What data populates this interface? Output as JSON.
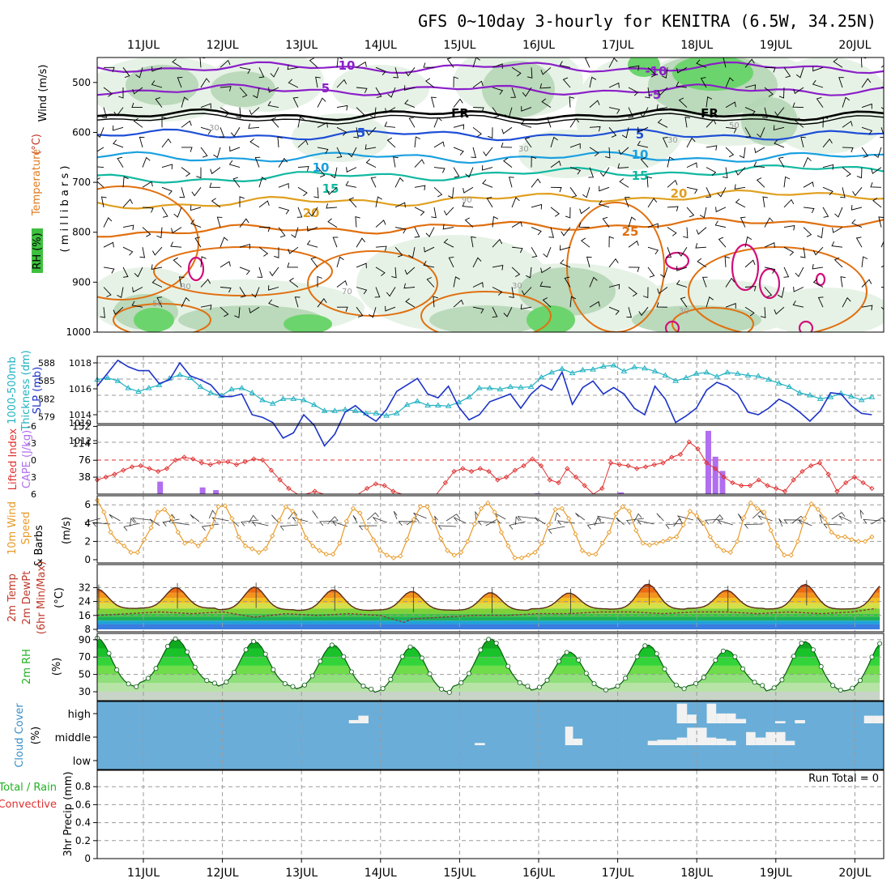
{
  "title": "GFS 0~10day 3-hourly for KENITRA (6.5W, 34.25N)",
  "dates": [
    "11JUL",
    "12JUL",
    "13JUL",
    "14JUL",
    "15JUL",
    "16JUL",
    "17JUL",
    "18JUL",
    "19JUL",
    "20JUL"
  ],
  "colors": {
    "wind_purple": "#8b1fc8",
    "fr_black": "#000000",
    "blue_5": "#1f4fd6",
    "cyan_10": "#1aa0e0",
    "teal_15": "#11b8a0",
    "gold_20": "#e0a020",
    "orange_25": "#e07010",
    "magenta": "#d0107a",
    "rh_light": "#e6f2e6",
    "rh_mid": "#b6d6b6",
    "rh_dark": "#9ab59a",
    "rh_bright": "#6cd46c",
    "slp_blue": "#1c33c8",
    "thick_cyan": "#22b2c2",
    "li_red": "#e03030",
    "cape_purple": "#b06ef0",
    "wind_orange": "#e89a28",
    "cloud_blue": "#6aadd8"
  },
  "panel_labels": {
    "upper": {
      "wind": "Wind (m/s)",
      "temperature": "Temperature",
      "temp_unit": "(°C)",
      "rh": "RH (%)",
      "pressure": "( m i l l i b a r s )"
    },
    "slp": {
      "thickness": "1000-500mb",
      "thickness2": "Thickness (dm)",
      "slp": "SLP (mb)"
    },
    "li": {
      "li": "Lifted Index",
      "cape": "CAPE (J/kg)"
    },
    "wind10": {
      "line1": "10m Wind",
      "line2": "Speed",
      "line3": "& Barbs",
      "unit": "(m/s)"
    },
    "temp2m": {
      "line1": "2m Temp",
      "line2": "2m DewPt",
      "line3": "(6hr Min/Max)",
      "unit": "(°C)"
    },
    "rh2m": {
      "label": "2m RH",
      "unit": "(%)"
    },
    "cloud": {
      "label": "Cloud Cover",
      "unit": "(%)"
    },
    "precip": {
      "line1": "Total / Rain",
      "line2": "Convective",
      "axis": "3hr Precip (mm)",
      "run_total": "Run Total = 0"
    }
  },
  "contour_labels": {
    "wind_10": "10",
    "wind_5": "5",
    "t_m10": "-10",
    "t_m5": "-5",
    "fr": "FR",
    "t_5": "5",
    "t_10": "10",
    "t_15": "15",
    "t_20": "20",
    "t_25": "25",
    "rh_30": "30",
    "rh_50": "50",
    "rh_70": "70",
    "rh_90": "90"
  },
  "chart_data": [
    {
      "type": "heatmap",
      "name": "pressure-time cross section",
      "y_ticks": [
        "500",
        "600",
        "700",
        "800",
        "900",
        "1000"
      ],
      "ylim": [
        1000,
        450
      ],
      "temperature_contours_C": [
        -10,
        -5,
        0,
        5,
        10,
        15,
        20,
        25
      ],
      "rh_levels_percent": [
        30,
        50,
        70,
        90
      ]
    },
    {
      "type": "line",
      "name": "slp-thickness",
      "slp_ticks": [
        "1012",
        "1014",
        "1016",
        "1018"
      ],
      "slp_bottom_tick": "1010",
      "thickness_ticks": [
        "579",
        "582",
        "585",
        "588"
      ],
      "slp_mb": [
        1016.2,
        1017.2,
        1018.2,
        1017.7,
        1017.4,
        1017.4,
        1016.4,
        1016.7,
        1018.0,
        1017.0,
        1016.7,
        1016.3,
        1015.4,
        1015.4,
        1015.6,
        1014.0,
        1013.8,
        1013.4,
        1012.2,
        1012.6,
        1014.0,
        1013.2,
        1011.6,
        1012.5,
        1014.2,
        1014.7,
        1014.0,
        1013.5,
        1014.4,
        1015.8,
        1016.3,
        1016.8,
        1015.6,
        1015.3,
        1016.2,
        1014.6,
        1013.6,
        1014.0,
        1015.0,
        1015.3,
        1015.6,
        1014.5,
        1015.6,
        1016.3,
        1015.9,
        1017.3,
        1014.8,
        1016.1,
        1016.6,
        1015.6,
        1016.1,
        1015.6,
        1014.5,
        1014.0,
        1016.2,
        1015.2,
        1013.4,
        1013.9,
        1014.5,
        1015.9,
        1016.5,
        1016.2,
        1015.6,
        1014.2,
        1014.0,
        1014.5,
        1015.2,
        1014.8,
        1014.2,
        1013.5,
        1014.3,
        1015.7,
        1015.6,
        1014.7,
        1014.1,
        1014.0
      ],
      "thickness_dm": [
        585.2,
        585.5,
        585.0,
        583.8,
        583.2,
        583.8,
        584.3,
        585.4,
        586.0,
        585.5,
        584.0,
        583.0,
        582.5,
        583.6,
        583.8,
        583.0,
        581.8,
        581.2,
        582.0,
        582.0,
        581.8,
        581.0,
        580.0,
        580.0,
        580.2,
        580.0,
        579.6,
        579.6,
        579.2,
        579.6,
        581.0,
        581.6,
        580.9,
        580.9,
        580.8,
        581.4,
        582.3,
        583.8,
        583.8,
        583.6,
        584.0,
        583.9,
        584.0,
        585.6,
        586.4,
        587.0,
        586.3,
        586.8,
        586.9,
        587.4,
        587.6,
        586.6,
        587.3,
        587.1,
        586.6,
        585.9,
        585.0,
        585.5,
        586.2,
        586.4,
        585.7,
        586.4,
        586.2,
        585.9,
        585.8,
        585.2,
        584.6,
        584.0,
        583.0,
        582.6,
        582.0,
        582.3,
        582.9,
        582.4,
        581.8,
        582.3
      ]
    },
    {
      "type": "bar",
      "name": "lifted-index-cape",
      "li_ticks": [
        "-6",
        "-3",
        "0",
        "3",
        "6"
      ],
      "cape_ticks": [
        "38",
        "76",
        "114",
        "152"
      ],
      "lifted_index": [
        3.5,
        3.0,
        2.5,
        1.8,
        1.2,
        1.0,
        1.5,
        2.0,
        1.5,
        0.0,
        -0.5,
        -0.2,
        0.5,
        0.8,
        0.4,
        0.3,
        0.8,
        0.3,
        -0.2,
        0.0,
        1.8,
        3.5,
        5.0,
        7.0,
        6.0,
        5.5,
        6.0,
        6.5,
        7.5,
        8.0,
        7.0,
        5.0,
        4.2,
        4.5,
        5.5,
        6.5,
        7.0,
        7.5,
        8.0,
        8.5,
        4.0,
        2.0,
        1.5,
        2.0,
        1.5,
        2.0,
        3.5,
        3.0,
        1.8,
        1.0,
        -0.2,
        1.0,
        3.5,
        4.0,
        1.5,
        3.0,
        4.5,
        6.5,
        5.0,
        0.5,
        0.8,
        1.0,
        1.5,
        1.2,
        0.8,
        0.5,
        -0.5,
        -1.0,
        -3.2,
        -2.0,
        0.5,
        1.5,
        3.0,
        4.0,
        4.5,
        4.5,
        3.5,
        4.5,
        5.0,
        5.5,
        3.5,
        2.0,
        1.0,
        0.5,
        2.5,
        5.5,
        4.0,
        3.0,
        4.0,
        5.0
      ],
      "cape": [
        {
          "t": 0.8,
          "v": 28
        },
        {
          "t": 1.34,
          "v": 15
        },
        {
          "t": 1.51,
          "v": 9
        },
        {
          "t": 5.6,
          "v": 2
        },
        {
          "t": 6.66,
          "v": 4
        },
        {
          "t": 7.77,
          "v": 142
        },
        {
          "t": 7.86,
          "v": 84
        },
        {
          "t": 7.95,
          "v": 52
        }
      ]
    },
    {
      "type": "line",
      "name": "10m wind speed",
      "y_ticks": [
        "0",
        "2",
        "4",
        "6"
      ],
      "speed_ms": [
        6.5,
        5.2,
        3.0,
        2.0,
        1.5,
        0.8,
        0.8,
        2.2,
        3.5,
        5.2,
        5.5,
        4.6,
        3.0,
        1.8,
        2.0,
        1.5,
        2.2,
        3.6,
        5.8,
        5.9,
        4.5,
        2.5,
        1.5,
        1.2,
        0.8,
        1.2,
        2.6,
        4.3,
        5.8,
        5.3,
        4.2,
        2.4,
        1.5,
        1.0,
        0.6,
        0.6,
        1.8,
        4.2,
        5.6,
        5.1,
        3.5,
        2.2,
        1.0,
        0.5,
        0.2,
        0.4,
        2.2,
        4.4,
        5.8,
        5.8,
        4.2,
        2.3,
        1.0,
        0.5,
        0.8,
        2.0,
        3.9,
        5.6,
        6.2,
        5.2,
        3.0,
        1.5,
        0.2,
        0.2,
        0.5,
        0.8,
        1.8,
        3.8,
        5.5,
        5.6,
        4.5,
        2.8,
        1.0,
        0.6,
        0.6,
        1.8,
        3.0,
        5.0,
        5.8,
        5.3,
        3.2,
        1.8,
        1.6,
        1.8,
        2.0,
        2.3,
        2.5,
        3.8,
        5.3,
        4.8,
        4.0,
        2.5,
        1.5,
        1.0,
        0.8,
        2.0,
        4.6,
        6.2,
        5.6,
        5.2,
        3.2,
        1.5,
        0.5,
        0.5,
        2.0,
        4.5,
        6.1,
        5.5,
        4.5,
        3.0,
        2.5,
        2.5,
        2.2,
        2.0,
        2.0,
        2.5
      ]
    },
    {
      "type": "area",
      "name": "2m temperature",
      "y_ticks": [
        "8",
        "16",
        "24",
        "32"
      ],
      "ylim": [
        8,
        36
      ],
      "max_temp_C": [
        31.2,
        32.0,
        32.3,
        30.7,
        29.8,
        29.1,
        28.9,
        34.0,
        30.5,
        33.8
      ],
      "night_min_C": [
        20.0,
        20.2,
        19.3,
        18.9,
        19.1,
        19.0,
        19.8,
        19.6,
        20.1,
        19.7
      ],
      "dewpoint_C": [
        [
          0,
          16
        ],
        [
          0.4,
          17
        ],
        [
          0.8,
          18
        ],
        [
          1.2,
          17
        ],
        [
          1.6,
          18
        ],
        [
          2.0,
          15
        ],
        [
          2.4,
          17
        ],
        [
          2.8,
          16
        ],
        [
          3.2,
          17
        ],
        [
          3.6,
          16
        ],
        [
          3.9,
          12
        ],
        [
          4.0,
          14
        ],
        [
          4.4,
          15
        ],
        [
          4.8,
          16
        ],
        [
          5.2,
          16
        ],
        [
          5.6,
          17
        ],
        [
          6.0,
          17
        ],
        [
          6.4,
          18
        ],
        [
          6.8,
          18
        ],
        [
          7.2,
          17
        ],
        [
          7.6,
          18
        ],
        [
          8.0,
          18
        ],
        [
          8.4,
          17
        ],
        [
          8.8,
          18
        ],
        [
          9.2,
          17
        ],
        [
          9.6,
          18
        ],
        [
          9.9,
          20
        ]
      ]
    },
    {
      "type": "area",
      "name": "2m relative humidity",
      "y_ticks": [
        "30",
        "50",
        "70",
        "90"
      ],
      "ylim": [
        22,
        96
      ],
      "daily_peak_percent": [
        92.0,
        91.0,
        88.0,
        84.0,
        82.0,
        91.0,
        76.0,
        84.0,
        78.0,
        88.0
      ],
      "daily_min_percent": [
        35.0,
        39.0,
        35.0,
        32.0,
        28.0,
        35.0,
        31.0,
        32.0,
        36.0,
        30.0
      ]
    },
    {
      "type": "bar",
      "name": "cloud cover",
      "y_ticks": [
        "high",
        "middle",
        "low"
      ],
      "high": [
        {
          "t0": 3.2,
          "t1": 3.32,
          "f": 0.15
        },
        {
          "t0": 3.32,
          "t1": 3.45,
          "f": 0.35
        },
        {
          "t0": 7.37,
          "t1": 7.5,
          "f": 0.9
        },
        {
          "t0": 7.5,
          "t1": 7.62,
          "f": 0.4
        },
        {
          "t0": 7.75,
          "t1": 7.87,
          "f": 0.9
        },
        {
          "t0": 7.87,
          "t1": 8.0,
          "f": 0.45
        },
        {
          "t0": 8.0,
          "t1": 8.12,
          "f": 0.45
        },
        {
          "t0": 8.12,
          "t1": 8.25,
          "f": 0.2
        },
        {
          "t0": 8.62,
          "t1": 8.75,
          "f": 0.1
        },
        {
          "t0": 8.87,
          "t1": 9.0,
          "f": 0.15
        },
        {
          "t0": 9.75,
          "t1": 9.87,
          "f": 0.35
        },
        {
          "t0": 9.87,
          "t1": 10.0,
          "f": 0.35
        }
      ],
      "middle": [
        {
          "t0": 4.8,
          "t1": 4.93,
          "f": 0.1
        },
        {
          "t0": 5.95,
          "t1": 6.05,
          "f": 0.85
        },
        {
          "t0": 6.05,
          "t1": 6.17,
          "f": 0.3
        },
        {
          "t0": 7.0,
          "t1": 7.12,
          "f": 0.2
        },
        {
          "t0": 7.12,
          "t1": 7.25,
          "f": 0.25
        },
        {
          "t0": 7.25,
          "t1": 7.37,
          "f": 0.25
        },
        {
          "t0": 7.37,
          "t1": 7.5,
          "f": 0.35
        },
        {
          "t0": 7.5,
          "t1": 7.62,
          "f": 0.8
        },
        {
          "t0": 7.62,
          "t1": 7.75,
          "f": 0.8
        },
        {
          "t0": 7.75,
          "t1": 7.87,
          "f": 0.35
        },
        {
          "t0": 7.87,
          "t1": 8.0,
          "f": 0.3
        },
        {
          "t0": 8.0,
          "t1": 8.12,
          "f": 0.2
        },
        {
          "t0": 8.25,
          "t1": 8.37,
          "f": 0.6
        },
        {
          "t0": 8.37,
          "t1": 8.5,
          "f": 0.35
        },
        {
          "t0": 8.5,
          "t1": 8.62,
          "f": 0.6
        },
        {
          "t0": 8.62,
          "t1": 8.75,
          "f": 0.6
        },
        {
          "t0": 8.75,
          "t1": 8.87,
          "f": 0.2
        }
      ],
      "low": []
    },
    {
      "type": "bar",
      "name": "3hr precipitation",
      "y_ticks": [
        "0",
        "0.2",
        "0.4",
        "0.6",
        "0.8"
      ],
      "ylim": [
        0,
        1
      ],
      "total_mm": [],
      "convective_mm": []
    }
  ]
}
